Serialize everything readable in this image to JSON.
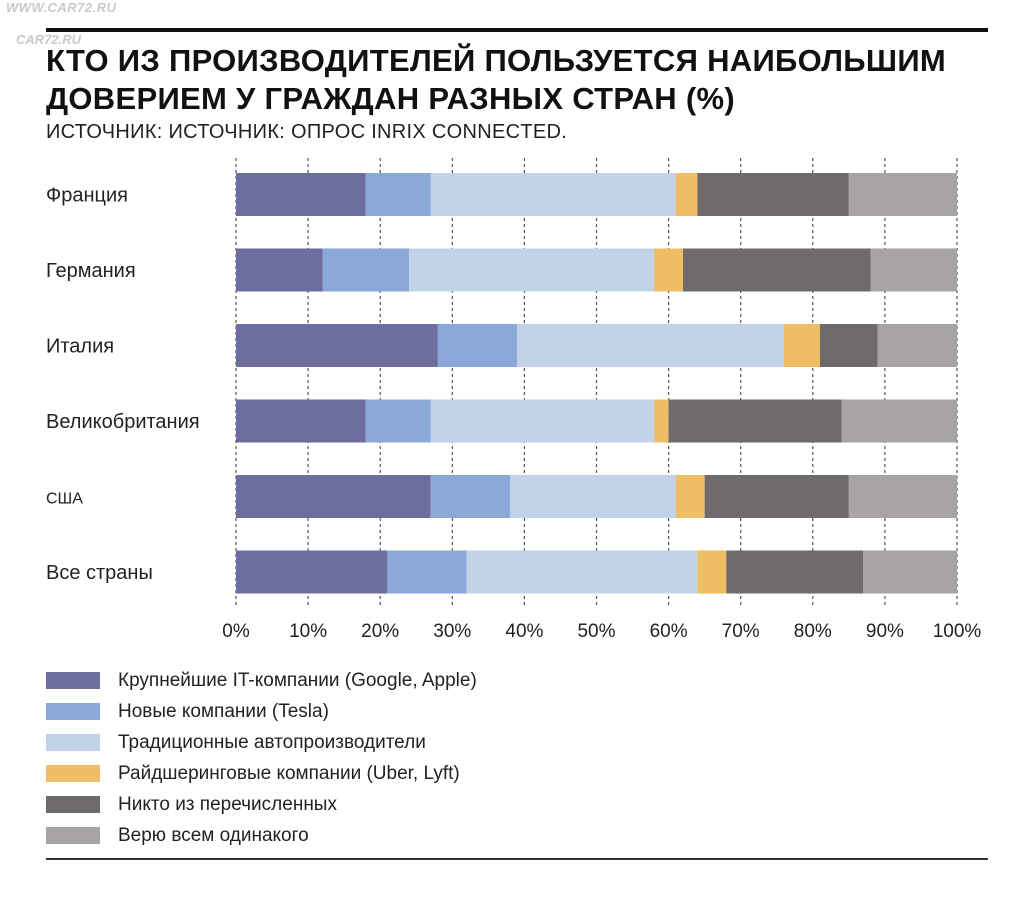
{
  "watermark": "WWW.CAR72.RU",
  "watermark_logo": "CAR72.RU",
  "title_line1": "КТО ИЗ ПРОИЗВОДИТЕЛЕЙ ПОЛЬЗУЕТСЯ НАИБОЛЬШИМ",
  "title_line2": "ДОВЕРИЕМ У ГРАЖДАН РАЗНЫХ СТРАН (%)",
  "subtitle": "ИСТОЧНИК: ИСТОЧНИК: ОПРОС INRIX CONNECTED.",
  "chart_data": {
    "type": "bar",
    "orientation": "horizontal",
    "stacked": true,
    "categories": [
      "Франция",
      "Германия",
      "Италия",
      "Великобритания",
      "США",
      "Все страны"
    ],
    "series": [
      {
        "name": "Крупнейшие IT-компании (Google, Apple)",
        "color": "#6e6e9e",
        "values": [
          18,
          12,
          28,
          18,
          27,
          21
        ]
      },
      {
        "name": "Новые компании (Tesla)",
        "color": "#8aa8d8",
        "values": [
          9,
          12,
          11,
          9,
          11,
          11
        ]
      },
      {
        "name": "Традиционные автопроизводители",
        "color": "#c2d3e9",
        "values": [
          34,
          34,
          37,
          31,
          23,
          32
        ]
      },
      {
        "name": "Райдшеринговые компании (Uber, Lyft)",
        "color": "#efbd63",
        "values": [
          3,
          4,
          5,
          2,
          4,
          4
        ]
      },
      {
        "name": "Никто из перечисленных",
        "color": "#6f6a6b",
        "values": [
          21,
          26,
          8,
          24,
          20,
          19
        ]
      },
      {
        "name": "Верю всем одинакого",
        "color": "#a8a3a6",
        "values": [
          15,
          12,
          11,
          16,
          15,
          13
        ]
      }
    ],
    "xlim": [
      0,
      100
    ],
    "x_ticks": [
      0,
      10,
      20,
      30,
      40,
      50,
      60,
      70,
      80,
      90,
      100
    ],
    "x_tick_labels": [
      "0%",
      "10%",
      "20%",
      "30%",
      "40%",
      "50%",
      "60%",
      "70%",
      "80%",
      "90%",
      "100%"
    ],
    "grid": true,
    "grid_style": "dashed vertical",
    "legend_position": "bottom-left"
  }
}
